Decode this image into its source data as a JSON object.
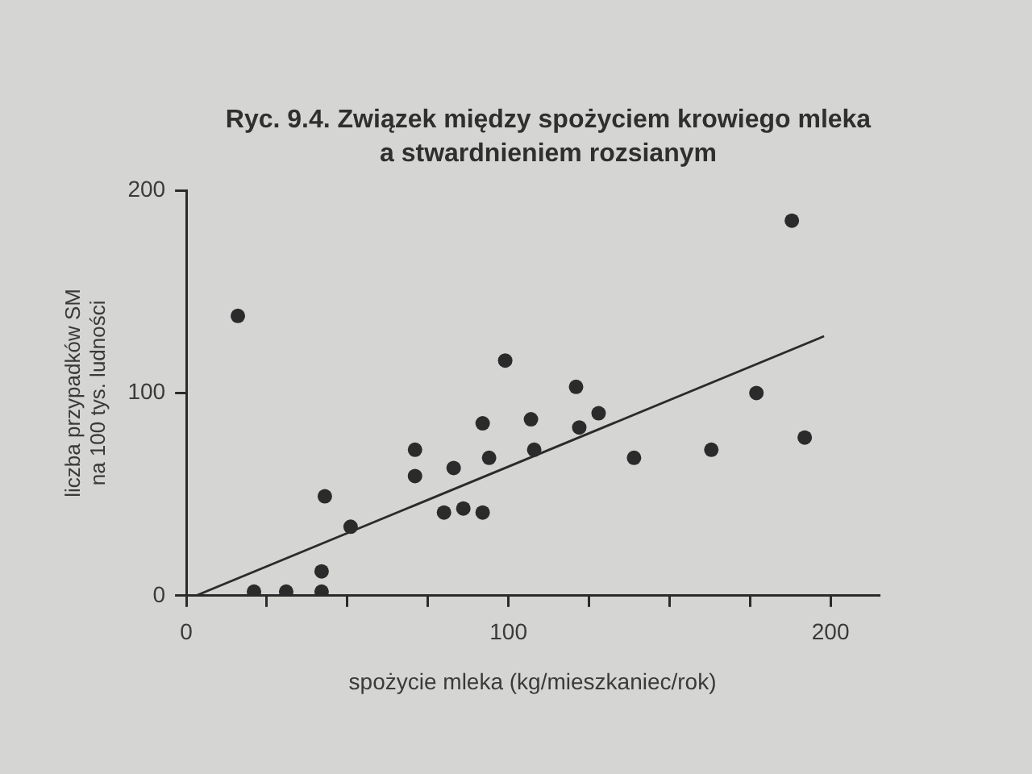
{
  "chart_data": {
    "type": "scatter",
    "title": "Ryc. 9.4. Związek między spożyciem krowiego mleka a stwardnieniem rozsianym",
    "xlabel": "spożycie mleka (kg/mieszkaniec/rok)",
    "ylabel": "liczba przypadków SM na 100 tys. ludności",
    "xlim": [
      0,
      215
    ],
    "xticks": [
      0,
      {
        "value": 25,
        "label": null
      },
      {
        "value": 50,
        "label": null
      },
      {
        "value": 75,
        "label": null
      },
      100,
      {
        "value": 125,
        "label": null
      },
      {
        "value": 150,
        "label": null
      },
      {
        "value": 175,
        "label": null
      },
      200
    ],
    "ylim": [
      0,
      200
    ],
    "yticks": [
      0,
      100,
      200
    ],
    "marker": "circle",
    "series": [
      {
        "color": "#2b2b2b",
        "x": [
          16,
          21,
          31,
          42,
          42,
          43,
          51,
          71,
          71,
          80,
          83,
          86,
          92,
          92,
          94,
          99,
          107,
          108,
          121,
          122,
          128,
          139,
          163,
          177,
          188,
          192
        ],
        "values": [
          138,
          2,
          2,
          2,
          12,
          49,
          34,
          72,
          59,
          41,
          63,
          43,
          85,
          41,
          68,
          116,
          87,
          72,
          103,
          83,
          90,
          68,
          72,
          100,
          185,
          78
        ]
      },
      {
        "type": "line",
        "color": "#2b2b2b",
        "marker": "none",
        "x": [
          3,
          198
        ],
        "values": [
          0,
          128
        ]
      }
    ]
  }
}
